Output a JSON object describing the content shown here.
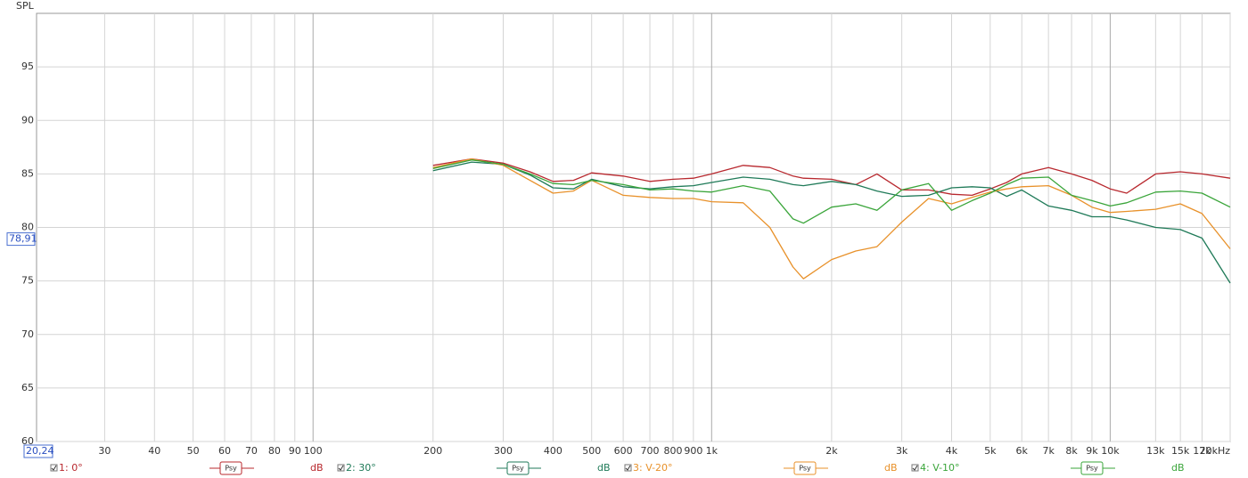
{
  "chart_data": {
    "type": "line",
    "y_label": "SPL",
    "xscale": "log",
    "grid": true,
    "xlim": [
      20.24,
      20000
    ],
    "ylim": [
      60,
      100
    ],
    "yticks": [
      60,
      65,
      70,
      75,
      80,
      85,
      90,
      95
    ],
    "xticks": [
      30,
      40,
      50,
      60,
      70,
      80,
      90,
      100,
      200,
      300,
      400,
      500,
      600,
      700,
      800,
      900,
      {
        "value": 1000,
        "label": "1k"
      },
      {
        "value": 2000,
        "label": "2k"
      },
      {
        "value": 3000,
        "label": "3k"
      },
      {
        "value": 4000,
        "label": "4k"
      },
      {
        "value": 5000,
        "label": "5k"
      },
      {
        "value": 6000,
        "label": "6k"
      },
      {
        "value": 7000,
        "label": "7k"
      },
      {
        "value": 8000,
        "label": "8k"
      },
      {
        "value": 9000,
        "label": "9k"
      },
      {
        "value": 10000,
        "label": "10k"
      },
      {
        "value": 13000,
        "label": "13k"
      },
      {
        "value": 15000,
        "label": "15k"
      },
      {
        "value": 17000,
        "label": "17k"
      },
      {
        "value": 20000,
        "label": "20kHz"
      }
    ],
    "x_cursor": {
      "value": 20.24,
      "label": "20,24"
    },
    "y_cursor": {
      "value": 78.91,
      "label": "78,91"
    },
    "x": [
      200,
      250,
      300,
      350,
      400,
      450,
      500,
      600,
      700,
      800,
      900,
      1000,
      1200,
      1400,
      1600,
      1700,
      2000,
      2300,
      2600,
      3000,
      3500,
      4000,
      4500,
      5000,
      5500,
      6000,
      7000,
      8000,
      9000,
      10000,
      11000,
      13000,
      15000,
      17000,
      20000
    ],
    "series": [
      {
        "name": "1: 0°",
        "color": "#b8282e",
        "smoothing": "Psy",
        "unit": "dB",
        "values": [
          85.8,
          86.4,
          86.0,
          85.2,
          84.3,
          84.4,
          85.1,
          84.8,
          84.3,
          84.5,
          84.6,
          85.0,
          85.8,
          85.6,
          84.8,
          84.6,
          84.5,
          84.0,
          85.0,
          83.5,
          83.5,
          83.1,
          83.0,
          83.6,
          84.2,
          85.0,
          85.6,
          85.0,
          84.4,
          83.6,
          83.2,
          85.0,
          85.2,
          85.0,
          84.6
        ]
      },
      {
        "name": "2: 30°",
        "color": "#1f7a58",
        "smoothing": "Psy",
        "unit": "dB",
        "values": [
          85.3,
          86.1,
          85.9,
          84.9,
          83.7,
          83.6,
          84.5,
          83.8,
          83.6,
          83.8,
          83.9,
          84.2,
          84.7,
          84.5,
          84.0,
          83.9,
          84.3,
          84.0,
          83.4,
          82.9,
          83.0,
          83.7,
          83.8,
          83.7,
          82.9,
          83.5,
          82.0,
          81.6,
          81.0,
          81.0,
          80.7,
          80.0,
          79.8,
          79.0,
          74.8
        ]
      },
      {
        "name": "3: V-20°",
        "color": "#e8912a",
        "smoothing": "Psy",
        "unit": "dB",
        "values": [
          85.6,
          86.4,
          85.8,
          84.4,
          83.2,
          83.4,
          84.4,
          83.0,
          82.8,
          82.7,
          82.7,
          82.4,
          82.3,
          80.0,
          76.3,
          75.2,
          77.0,
          77.8,
          78.2,
          80.5,
          82.7,
          82.2,
          82.8,
          83.3,
          83.6,
          83.8,
          83.9,
          83.0,
          81.9,
          81.4,
          81.5,
          81.7,
          82.2,
          81.3,
          78.0
        ]
      },
      {
        "name": "4: V-10°",
        "color": "#3aa53a",
        "smoothing": "Psy",
        "unit": "dB",
        "values": [
          85.5,
          86.3,
          85.9,
          85.0,
          84.1,
          84.0,
          84.4,
          84.0,
          83.5,
          83.6,
          83.4,
          83.3,
          83.9,
          83.4,
          80.8,
          80.4,
          81.9,
          82.2,
          81.6,
          83.5,
          84.1,
          81.6,
          82.5,
          83.2,
          84.0,
          84.6,
          84.7,
          83.0,
          82.5,
          82.0,
          82.3,
          83.3,
          83.4,
          83.2,
          81.9
        ]
      }
    ]
  }
}
